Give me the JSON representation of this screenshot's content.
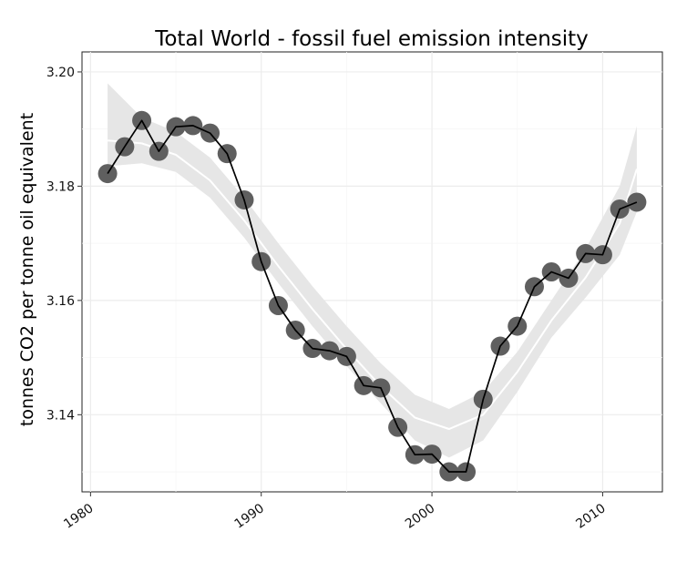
{
  "chart_data": {
    "type": "line",
    "title": "Total World - fossil fuel emission intensity",
    "xlabel": "",
    "ylabel": "tonnes CO2 per tonne oil equivalent",
    "xlim": [
      1979.5,
      2013.5
    ],
    "ylim": [
      3.1265,
      3.2035
    ],
    "x_ticks": [
      1980,
      1990,
      2000,
      2010
    ],
    "y_ticks": [
      3.14,
      3.16,
      3.18,
      3.2
    ],
    "y_tick_labels": [
      "3.14",
      "3.16",
      "3.18",
      "3.20"
    ],
    "x_tick_labels": [
      "1980",
      "1990",
      "2000",
      "2010"
    ],
    "grid": true,
    "legend": "none",
    "colors": {
      "points": "#5f5f5f",
      "line": "#000000",
      "ribbon": "#e6e6e6",
      "smooth": "#ffffff"
    },
    "series": [
      {
        "x": [
          1981,
          1982,
          1983,
          1984,
          1985,
          1986,
          1987,
          1988,
          1989,
          1990,
          1991,
          1992,
          1993,
          1994,
          1995,
          1996,
          1997,
          1998,
          1999,
          2000,
          2001,
          2002,
          2003,
          2004,
          2005,
          2006,
          2007,
          2008,
          2009,
          2010,
          2011,
          2012
        ],
        "y": [
          3.1822,
          3.1869,
          3.1915,
          3.1861,
          3.1904,
          3.1906,
          3.1893,
          3.1857,
          3.1776,
          3.1668,
          3.1591,
          3.1548,
          3.1516,
          3.1512,
          3.1502,
          3.1451,
          3.1447,
          3.1378,
          3.133,
          3.1331,
          3.13,
          3.13,
          3.1427,
          3.152,
          3.1555,
          3.1624,
          3.165,
          3.1639,
          3.1682,
          3.168,
          3.176,
          3.1772
        ]
      }
    ],
    "smooth": {
      "x": [
        1981,
        1983,
        1985,
        1987,
        1989,
        1991,
        1993,
        1995,
        1997,
        1999,
        2001,
        2003,
        2005,
        2007,
        2009,
        2011,
        2012
      ],
      "y": [
        3.188,
        3.1875,
        3.1855,
        3.181,
        3.174,
        3.166,
        3.1585,
        3.1515,
        3.145,
        3.1395,
        3.1375,
        3.14,
        3.1475,
        3.1565,
        3.164,
        3.1735,
        3.183
      ],
      "lower": [
        3.1835,
        3.184,
        3.1825,
        3.178,
        3.171,
        3.163,
        3.1555,
        3.1485,
        3.142,
        3.1355,
        3.1325,
        3.1355,
        3.144,
        3.1535,
        3.1605,
        3.168,
        3.1755
      ],
      "upper": [
        3.198,
        3.192,
        3.1895,
        3.185,
        3.178,
        3.17,
        3.1625,
        3.1555,
        3.149,
        3.1435,
        3.141,
        3.144,
        3.151,
        3.16,
        3.169,
        3.18,
        3.1905
      ]
    }
  }
}
